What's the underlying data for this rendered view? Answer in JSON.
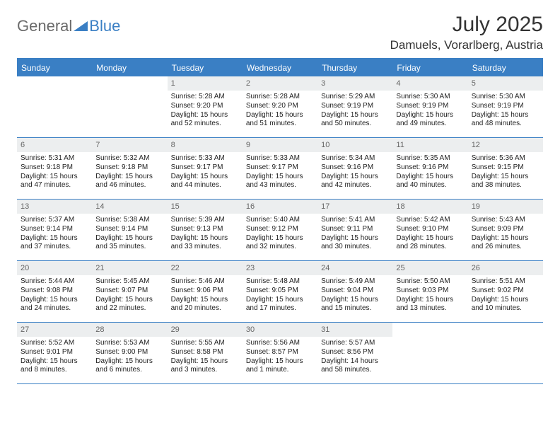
{
  "logo": {
    "text1": "General",
    "text2": "Blue"
  },
  "title": "July 2025",
  "location": "Damuels, Vorarlberg, Austria",
  "colors": {
    "accent": "#3a7fc4",
    "header_bg": "#3a7fc4",
    "header_text": "#ffffff",
    "daynum_bg": "#eceeef",
    "daynum_text": "#666666",
    "body_text": "#222222",
    "background": "#ffffff"
  },
  "day_names": [
    "Sunday",
    "Monday",
    "Tuesday",
    "Wednesday",
    "Thursday",
    "Friday",
    "Saturday"
  ],
  "weeks": [
    [
      {
        "n": "",
        "sr": "",
        "ss": "",
        "dl": ""
      },
      {
        "n": "",
        "sr": "",
        "ss": "",
        "dl": ""
      },
      {
        "n": "1",
        "sr": "Sunrise: 5:28 AM",
        "ss": "Sunset: 9:20 PM",
        "dl": "Daylight: 15 hours and 52 minutes."
      },
      {
        "n": "2",
        "sr": "Sunrise: 5:28 AM",
        "ss": "Sunset: 9:20 PM",
        "dl": "Daylight: 15 hours and 51 minutes."
      },
      {
        "n": "3",
        "sr": "Sunrise: 5:29 AM",
        "ss": "Sunset: 9:19 PM",
        "dl": "Daylight: 15 hours and 50 minutes."
      },
      {
        "n": "4",
        "sr": "Sunrise: 5:30 AM",
        "ss": "Sunset: 9:19 PM",
        "dl": "Daylight: 15 hours and 49 minutes."
      },
      {
        "n": "5",
        "sr": "Sunrise: 5:30 AM",
        "ss": "Sunset: 9:19 PM",
        "dl": "Daylight: 15 hours and 48 minutes."
      }
    ],
    [
      {
        "n": "6",
        "sr": "Sunrise: 5:31 AM",
        "ss": "Sunset: 9:18 PM",
        "dl": "Daylight: 15 hours and 47 minutes."
      },
      {
        "n": "7",
        "sr": "Sunrise: 5:32 AM",
        "ss": "Sunset: 9:18 PM",
        "dl": "Daylight: 15 hours and 46 minutes."
      },
      {
        "n": "8",
        "sr": "Sunrise: 5:33 AM",
        "ss": "Sunset: 9:17 PM",
        "dl": "Daylight: 15 hours and 44 minutes."
      },
      {
        "n": "9",
        "sr": "Sunrise: 5:33 AM",
        "ss": "Sunset: 9:17 PM",
        "dl": "Daylight: 15 hours and 43 minutes."
      },
      {
        "n": "10",
        "sr": "Sunrise: 5:34 AM",
        "ss": "Sunset: 9:16 PM",
        "dl": "Daylight: 15 hours and 42 minutes."
      },
      {
        "n": "11",
        "sr": "Sunrise: 5:35 AM",
        "ss": "Sunset: 9:16 PM",
        "dl": "Daylight: 15 hours and 40 minutes."
      },
      {
        "n": "12",
        "sr": "Sunrise: 5:36 AM",
        "ss": "Sunset: 9:15 PM",
        "dl": "Daylight: 15 hours and 38 minutes."
      }
    ],
    [
      {
        "n": "13",
        "sr": "Sunrise: 5:37 AM",
        "ss": "Sunset: 9:14 PM",
        "dl": "Daylight: 15 hours and 37 minutes."
      },
      {
        "n": "14",
        "sr": "Sunrise: 5:38 AM",
        "ss": "Sunset: 9:14 PM",
        "dl": "Daylight: 15 hours and 35 minutes."
      },
      {
        "n": "15",
        "sr": "Sunrise: 5:39 AM",
        "ss": "Sunset: 9:13 PM",
        "dl": "Daylight: 15 hours and 33 minutes."
      },
      {
        "n": "16",
        "sr": "Sunrise: 5:40 AM",
        "ss": "Sunset: 9:12 PM",
        "dl": "Daylight: 15 hours and 32 minutes."
      },
      {
        "n": "17",
        "sr": "Sunrise: 5:41 AM",
        "ss": "Sunset: 9:11 PM",
        "dl": "Daylight: 15 hours and 30 minutes."
      },
      {
        "n": "18",
        "sr": "Sunrise: 5:42 AM",
        "ss": "Sunset: 9:10 PM",
        "dl": "Daylight: 15 hours and 28 minutes."
      },
      {
        "n": "19",
        "sr": "Sunrise: 5:43 AM",
        "ss": "Sunset: 9:09 PM",
        "dl": "Daylight: 15 hours and 26 minutes."
      }
    ],
    [
      {
        "n": "20",
        "sr": "Sunrise: 5:44 AM",
        "ss": "Sunset: 9:08 PM",
        "dl": "Daylight: 15 hours and 24 minutes."
      },
      {
        "n": "21",
        "sr": "Sunrise: 5:45 AM",
        "ss": "Sunset: 9:07 PM",
        "dl": "Daylight: 15 hours and 22 minutes."
      },
      {
        "n": "22",
        "sr": "Sunrise: 5:46 AM",
        "ss": "Sunset: 9:06 PM",
        "dl": "Daylight: 15 hours and 20 minutes."
      },
      {
        "n": "23",
        "sr": "Sunrise: 5:48 AM",
        "ss": "Sunset: 9:05 PM",
        "dl": "Daylight: 15 hours and 17 minutes."
      },
      {
        "n": "24",
        "sr": "Sunrise: 5:49 AM",
        "ss": "Sunset: 9:04 PM",
        "dl": "Daylight: 15 hours and 15 minutes."
      },
      {
        "n": "25",
        "sr": "Sunrise: 5:50 AM",
        "ss": "Sunset: 9:03 PM",
        "dl": "Daylight: 15 hours and 13 minutes."
      },
      {
        "n": "26",
        "sr": "Sunrise: 5:51 AM",
        "ss": "Sunset: 9:02 PM",
        "dl": "Daylight: 15 hours and 10 minutes."
      }
    ],
    [
      {
        "n": "27",
        "sr": "Sunrise: 5:52 AM",
        "ss": "Sunset: 9:01 PM",
        "dl": "Daylight: 15 hours and 8 minutes."
      },
      {
        "n": "28",
        "sr": "Sunrise: 5:53 AM",
        "ss": "Sunset: 9:00 PM",
        "dl": "Daylight: 15 hours and 6 minutes."
      },
      {
        "n": "29",
        "sr": "Sunrise: 5:55 AM",
        "ss": "Sunset: 8:58 PM",
        "dl": "Daylight: 15 hours and 3 minutes."
      },
      {
        "n": "30",
        "sr": "Sunrise: 5:56 AM",
        "ss": "Sunset: 8:57 PM",
        "dl": "Daylight: 15 hours and 1 minute."
      },
      {
        "n": "31",
        "sr": "Sunrise: 5:57 AM",
        "ss": "Sunset: 8:56 PM",
        "dl": "Daylight: 14 hours and 58 minutes."
      },
      {
        "n": "",
        "sr": "",
        "ss": "",
        "dl": ""
      },
      {
        "n": "",
        "sr": "",
        "ss": "",
        "dl": ""
      }
    ]
  ]
}
